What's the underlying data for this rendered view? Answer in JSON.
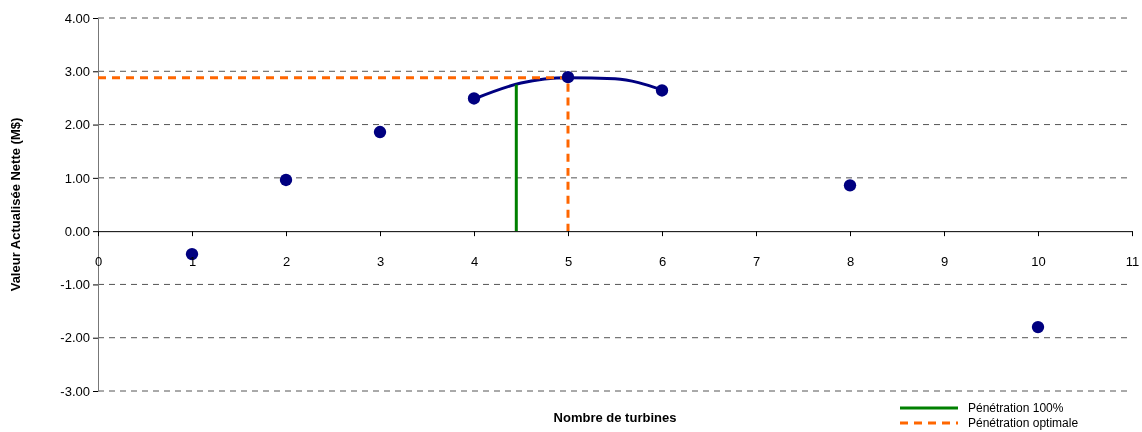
{
  "chart_data": {
    "type": "scatter",
    "xlabel": "Nombre de turbines",
    "ylabel": "Valeur Actualisée Nette (M$)",
    "xlim": [
      0,
      11
    ],
    "xticks": [
      0,
      1,
      2,
      3,
      4,
      5,
      6,
      7,
      8,
      9,
      10,
      11
    ],
    "ylim": [
      -3,
      4
    ],
    "yticks": [
      {
        "value": -3,
        "label": "-3.00"
      },
      {
        "value": -2,
        "label": "-2.00"
      },
      {
        "value": -1,
        "label": "-1.00"
      },
      {
        "value": 0,
        "label": "0.00"
      },
      {
        "value": 1,
        "label": "1.00"
      },
      {
        "value": 2,
        "label": "2.00"
      },
      {
        "value": 3,
        "label": "3.00"
      },
      {
        "value": 4,
        "label": "4.00"
      }
    ],
    "grid": "y",
    "legend": "bottom right",
    "marker": "circle",
    "series": [
      {
        "color": "#000080",
        "x": [
          1,
          2,
          3,
          4,
          5,
          6,
          8,
          10
        ],
        "values": [
          -0.43,
          0.96,
          1.86,
          2.49,
          2.89,
          2.64,
          0.86,
          -1.8
        ]
      },
      {
        "type": "line",
        "color": "#000080",
        "marker": "none",
        "line_style": "solid",
        "x": [
          4,
          4.5,
          5,
          5.5,
          6
        ],
        "values": [
          2.48,
          2.78,
          2.88,
          2.86,
          2.65
        ]
      },
      {
        "type": "line",
        "name": "Pénétration 100%",
        "color": "#008000",
        "marker": "none",
        "line_style": "solid",
        "x": [
          4.45,
          4.45
        ],
        "values": [
          0,
          2.75
        ]
      },
      {
        "type": "line",
        "name": "Pénétration optimale",
        "color": "#ff6600",
        "marker": "none",
        "line_style": "dashed",
        "x": [
          0,
          5,
          5
        ],
        "values": [
          2.88,
          2.88,
          0
        ]
      }
    ]
  }
}
